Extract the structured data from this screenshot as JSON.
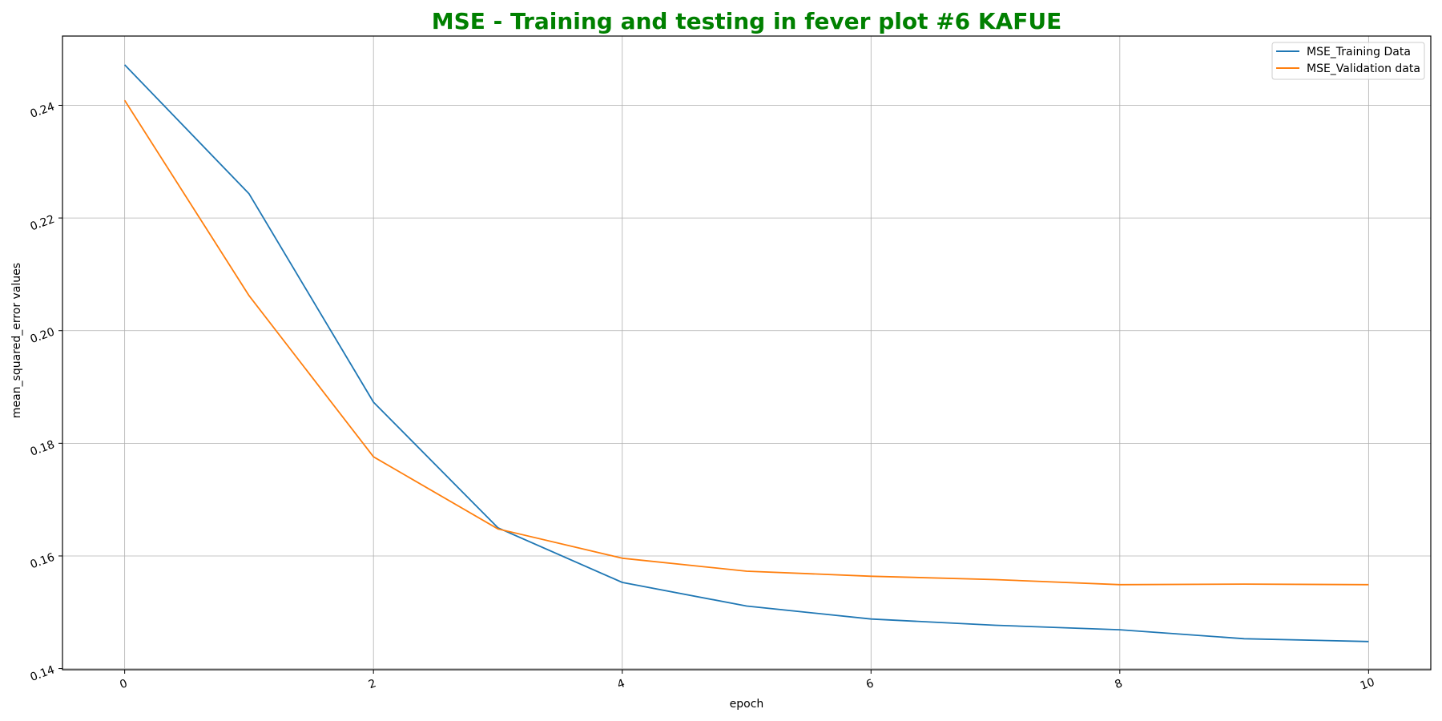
{
  "chart_data": {
    "type": "line",
    "title": "MSE - Training and testing in fever plot #6 KAFUE",
    "xlabel": "epoch",
    "ylabel": "mean_squared_error values",
    "x": [
      0,
      1,
      2,
      3,
      4,
      5,
      6,
      7,
      8,
      9,
      10
    ],
    "xlim": [
      -0.5,
      10.5
    ],
    "ylim": [
      0.1398,
      0.2523
    ],
    "xticks": [
      0,
      2,
      4,
      6,
      8,
      10
    ],
    "yticks": [
      0.14,
      0.16,
      0.18,
      0.2,
      0.22,
      0.24
    ],
    "xtick_labels": [
      "0",
      "2",
      "4",
      "6",
      "8",
      "10"
    ],
    "ytick_labels": [
      "0.14",
      "0.16",
      "0.18",
      "0.20",
      "0.22",
      "0.24"
    ],
    "grid": true,
    "legend_position": "top-right",
    "series": [
      {
        "name": "MSE_Training Data",
        "color": "#1f77b4",
        "values": [
          0.2472,
          0.2243,
          0.1873,
          0.165,
          0.1553,
          0.1511,
          0.1488,
          0.1477,
          0.1469,
          0.1453,
          0.1448
        ]
      },
      {
        "name": "MSE_Validation data",
        "color": "#ff7f0e",
        "values": [
          0.2409,
          0.2062,
          0.1776,
          0.1648,
          0.1596,
          0.1573,
          0.1564,
          0.1558,
          0.1549,
          0.155,
          0.1549
        ]
      }
    ],
    "title_color": "#008000"
  }
}
